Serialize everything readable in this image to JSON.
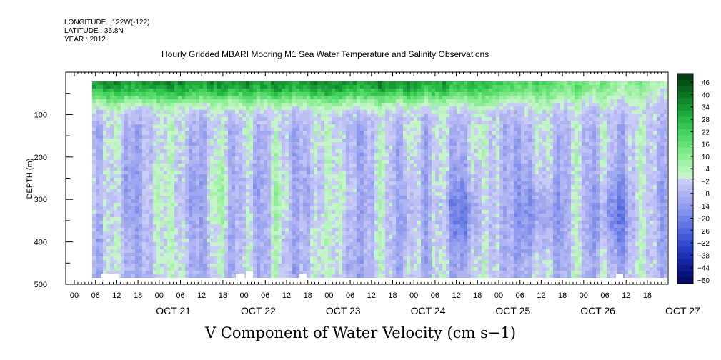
{
  "header": {
    "longitude": "LONGITUDE : 122W(-122)",
    "latitude": "LATITUDE : 36.8N",
    "year": "YEAR : 2012"
  },
  "title": "Hourly Gridded MBARI Mooring M1 Sea Water Temperature and Salinity Observations",
  "bottom_title": "V Component of Water Velocity (cm s−1)",
  "chart_data": {
    "type": "heatmap",
    "title": "Hourly Gridded MBARI Mooring M1 Sea Water Temperature and Salinity Observations",
    "xlabel": "",
    "ylabel": "DEPTH (m)",
    "y_ticks": [
      100,
      200,
      300,
      400,
      500
    ],
    "y_range": [
      20,
      500
    ],
    "x_tick_labels": [
      "00",
      "06",
      "12",
      "18",
      "00",
      "06",
      "12",
      "18",
      "00",
      "06",
      "12",
      "18",
      "00",
      "06",
      "12",
      "18",
      "00",
      "06",
      "12",
      "18",
      "00",
      "06",
      "12",
      "18",
      "00",
      "06",
      "12",
      "18"
    ],
    "x_days": [
      "OCT 21",
      "OCT 22",
      "OCT 23",
      "OCT 24",
      "OCT 25",
      "OCT 26",
      "OCT 27"
    ],
    "colorbar": {
      "labels": [
        "46",
        "40",
        "34",
        "28",
        "22",
        "16",
        "10",
        "4",
        "−2",
        "−8",
        "−14",
        "−20",
        "−26",
        "−32",
        "−38",
        "−44",
        "−50"
      ],
      "levels": [
        50,
        46,
        43,
        40,
        37,
        34,
        31,
        28,
        25,
        22,
        19,
        16,
        13,
        10,
        7,
        4,
        1,
        -2,
        -5,
        -8,
        -11,
        -14,
        -17,
        -20,
        -23,
        -26,
        -29,
        -32,
        -35,
        -38,
        -41,
        -44,
        -47,
        -50
      ],
      "colors": [
        "#053d14",
        "#075119",
        "#0a641f",
        "#0d7526",
        "#11862d",
        "#179834",
        "#1fa93c",
        "#29b946",
        "#35c651",
        "#44d15d",
        "#54da69",
        "#67e176",
        "#7be886",
        "#8fed97",
        "#a3f1a9",
        "#b5f3ba",
        "#c5f4c8",
        "#c8cdf5",
        "#bcc0f4",
        "#aeb4f2",
        "#a0a8f0",
        "#919cee",
        "#8290eb",
        "#7283e7",
        "#6276e3",
        "#5268de",
        "#425ad8",
        "#344bcf",
        "#283dc3",
        "#1d31b4",
        "#1526a2",
        "#0f1c8e",
        "#0a137a",
        "#060b66"
      ]
    },
    "data_extent_x": [
      "OCT 20 06",
      "OCT 27 23"
    ]
  }
}
